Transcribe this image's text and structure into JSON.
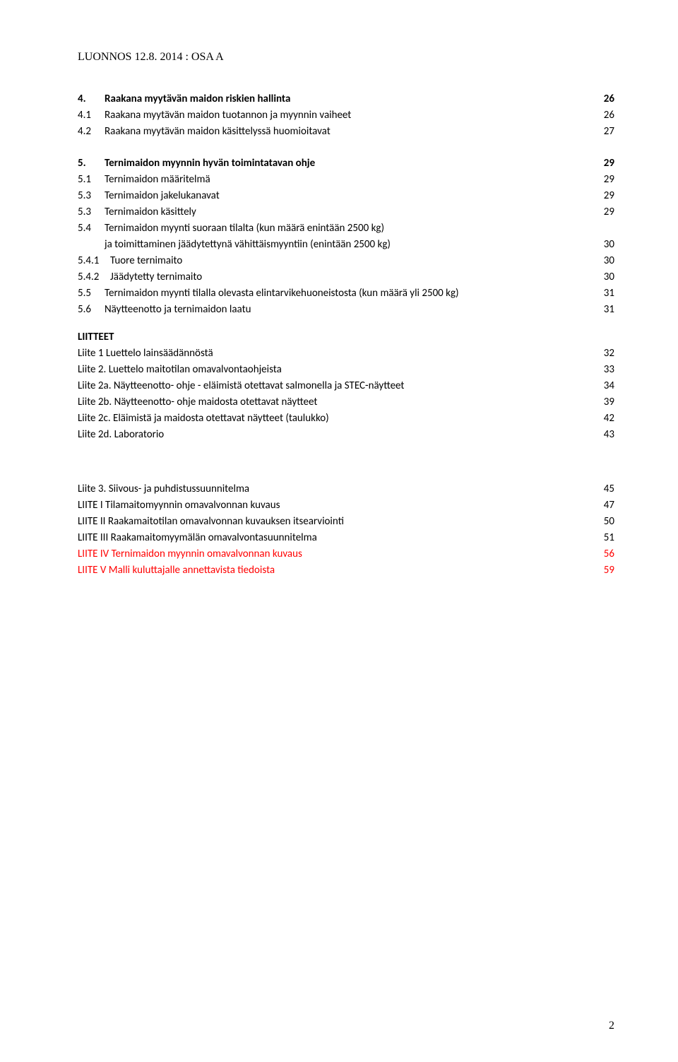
{
  "header": "LUONNOS 12.8. 2014 : OSA A",
  "page_number": "2",
  "toc": [
    {
      "num": "4.",
      "label": "Raakana myytävän maidon riskien hallinta",
      "page": "26",
      "bold": true
    },
    {
      "num": "4.1",
      "label": "Raakana myytävän maidon tuotannon ja myynnin vaiheet",
      "page": "26"
    },
    {
      "num": "4.2",
      "label": "Raakana myytävän maidon käsittelyssä huomioitavat",
      "page": "27"
    },
    {
      "gap": true
    },
    {
      "num": "5.",
      "label": "Ternimaidon myynnin hyvän toimintatavan ohje",
      "page": "29",
      "bold": true
    },
    {
      "num": "5.1",
      "label": "Ternimaidon määritelmä",
      "page": "29"
    },
    {
      "num": "5.3",
      "label": "Ternimaidon  jakelukanavat",
      "page": "29"
    },
    {
      "num": "5.3",
      "label": "Ternimaidon käsittely",
      "page": "29"
    },
    {
      "num": "5.4",
      "label": "Ternimaidon myynti suoraan tilalta (kun määrä enintään 2500 kg)",
      "page": ""
    },
    {
      "num": "",
      "label": "ja toimittaminen jäädytettynä vähittäismyyntiin (enintään 2500 kg)",
      "page": "30"
    },
    {
      "num": "5.4.1",
      "label": "Tuore ternimaito",
      "page": "30",
      "sub": true
    },
    {
      "num": "5.4.2",
      "label": "Jäädytetty ternimaito",
      "page": "30",
      "sub": true
    },
    {
      "num": "5.5",
      "label": "Ternimaidon myynti tilalla olevasta elintarvikehuoneistosta (kun määrä yli 2500 kg)",
      "page": "31"
    },
    {
      "num": "5.6",
      "label": "Näytteenotto ja ternimaidon laatu",
      "page": "31"
    }
  ],
  "liitteet_heading": "LIITTEET",
  "liitteet_a": [
    {
      "label": "Liite 1   Luettelo lainsäädännöstä",
      "page": "32"
    },
    {
      "label": "Liite 2.  Luettelo maitotilan omavalvontaohjeista",
      "page": "33"
    },
    {
      "label": "Liite 2a. Näytteenotto- ohje - eläimistä otettavat salmonella ja STEC-näytteet",
      "page": "34"
    },
    {
      "label": "Liite 2b. Näytteenotto- ohje maidosta otettavat  näytteet",
      "page": "39"
    },
    {
      "label": "Liite 2c.  Eläimistä ja maidosta otettavat näytteet (taulukko)",
      "page": "42"
    },
    {
      "label": "Liite 2d. Laboratorio",
      "page": "43"
    }
  ],
  "liitteet_b": [
    {
      "label": "Liite 3.  Siivous- ja puhdistussuunnitelma",
      "page": "45"
    },
    {
      "label": "LIITE I   Tilamaitomyynnin  omavalvonnan kuvaus",
      "page": "47"
    },
    {
      "label": "LIITE II  Raakamaitotilan omavalvonnan kuvauksen itsearviointi",
      "page": "50"
    },
    {
      "label": "LIITE III Raakamaitomyymälän omavalvontasuunnitelma",
      "page": "51"
    },
    {
      "label": "LIITE IV Ternimaidon myynnin omavalvonnan kuvaus",
      "page": "56",
      "red": true
    },
    {
      "label": "LIITE V Malli kuluttajalle annettavista tiedoista",
      "page": "59",
      "red": true
    }
  ]
}
